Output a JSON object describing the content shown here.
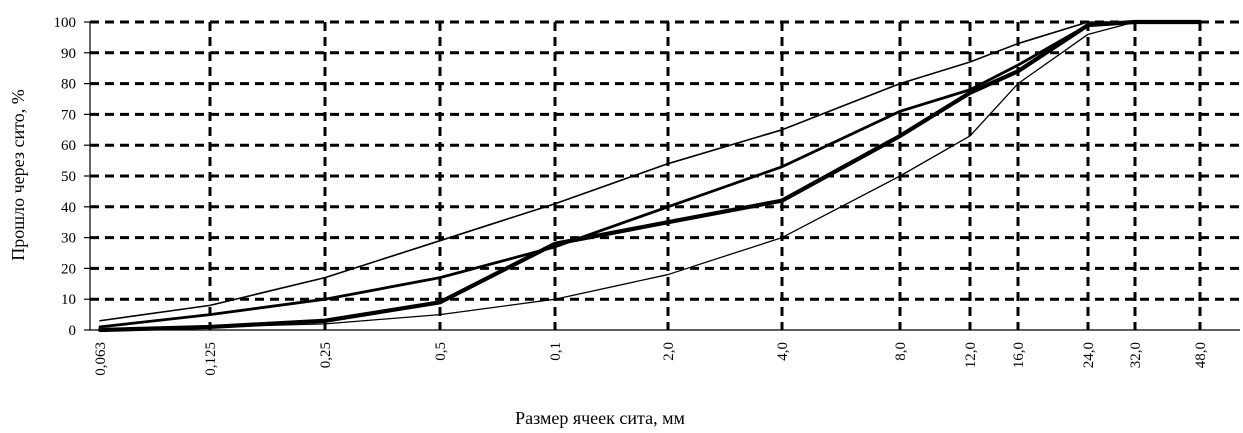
{
  "chart_data": {
    "type": "line",
    "title": "",
    "xlabel": "Размер ячеек сита, мм",
    "ylabel": "Прошло через сито, %",
    "categories": [
      "0,063",
      "0,125",
      "0,25",
      "0,5",
      "0,1",
      "2,0",
      "4,0",
      "8,0",
      "12,0",
      "16,0",
      "24,0",
      "32,0",
      "48,0"
    ],
    "y_ticks": [
      "0",
      "10",
      "20",
      "30",
      "40",
      "50",
      "60",
      "70",
      "80",
      "90",
      "100"
    ],
    "ylim": [
      0,
      100
    ],
    "grid": true,
    "legend": "none",
    "series": [
      {
        "values": [
          3,
          8,
          17,
          29,
          41,
          54,
          65,
          80,
          87,
          93,
          100,
          100,
          100
        ]
      },
      {
        "values": [
          1,
          5,
          10,
          17,
          27,
          40,
          53,
          71,
          78,
          86,
          99,
          100,
          100
        ]
      },
      {
        "values": [
          0,
          1,
          3,
          9,
          28,
          35,
          42,
          63,
          77,
          84,
          99,
          100,
          100
        ]
      },
      {
        "values": [
          0,
          1,
          2,
          5,
          10,
          18,
          30,
          50,
          63,
          80,
          96,
          100,
          100
        ]
      }
    ]
  }
}
